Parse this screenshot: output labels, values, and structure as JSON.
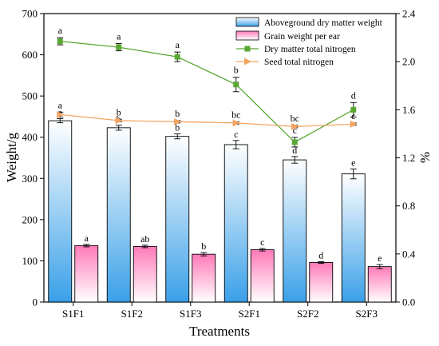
{
  "chart_data": {
    "type": "bar",
    "categories": [
      "S1F1",
      "S1F2",
      "S1F3",
      "S2F1",
      "S2F2",
      "S2F3"
    ],
    "xlabel": "Treatments",
    "ylabel": "Weight/g",
    "y2label": "%",
    "ylim": [
      0,
      700
    ],
    "y2lim": [
      0,
      2.4
    ],
    "yticks": [
      0,
      100,
      200,
      300,
      400,
      500,
      600,
      700
    ],
    "y2ticks": [
      0.0,
      0.4,
      0.8,
      1.2,
      1.6,
      2.0,
      2.4
    ],
    "y2tick_labels": [
      "0.0",
      "0.4",
      "0.8",
      "1.2",
      "1.6",
      "2.0",
      "2.4"
    ],
    "legend_position": "top-right",
    "grid": false,
    "series": [
      {
        "name": "Aboveground dry matter weight",
        "kind": "bar",
        "axis": "left",
        "values": [
          440,
          423,
          402,
          382,
          345,
          311
        ],
        "errors": [
          5,
          6,
          6,
          10,
          8,
          12
        ],
        "letters": [
          "a",
          "b",
          "b",
          "c",
          "d",
          "e"
        ],
        "color_top": "#ffffff",
        "color_bottom": "#3aa0e8"
      },
      {
        "name": "Grain weight per ear",
        "kind": "bar",
        "axis": "left",
        "values": [
          137,
          135,
          116,
          127,
          96,
          86
        ],
        "errors": [
          3,
          3,
          4,
          3,
          2,
          5
        ],
        "letters": [
          "a",
          "ab",
          "b",
          "c",
          "d",
          "e"
        ],
        "color_top": "#ff7ab8",
        "color_bottom": "#ffffff"
      },
      {
        "name": "Dry matter total nitrogen",
        "kind": "line",
        "axis": "right",
        "marker": "square",
        "values": [
          2.17,
          2.12,
          2.04,
          1.81,
          1.33,
          1.6
        ],
        "errors": [
          0.03,
          0.03,
          0.04,
          0.06,
          0.04,
          0.06
        ],
        "letters": [
          "a",
          "a",
          "a",
          "b",
          "c",
          "d"
        ],
        "color": "#5aa832"
      },
      {
        "name": "Seed total nitrogen",
        "kind": "line",
        "axis": "right",
        "marker": "triangle-right",
        "values": [
          1.56,
          1.51,
          1.5,
          1.49,
          1.46,
          1.48
        ],
        "errors": [
          0.02,
          0.01,
          0.01,
          0.01,
          0.01,
          0.01
        ],
        "letters": [
          "a",
          "b",
          "b",
          "bc",
          "bc",
          "c"
        ],
        "color": "#f4a460"
      }
    ]
  }
}
